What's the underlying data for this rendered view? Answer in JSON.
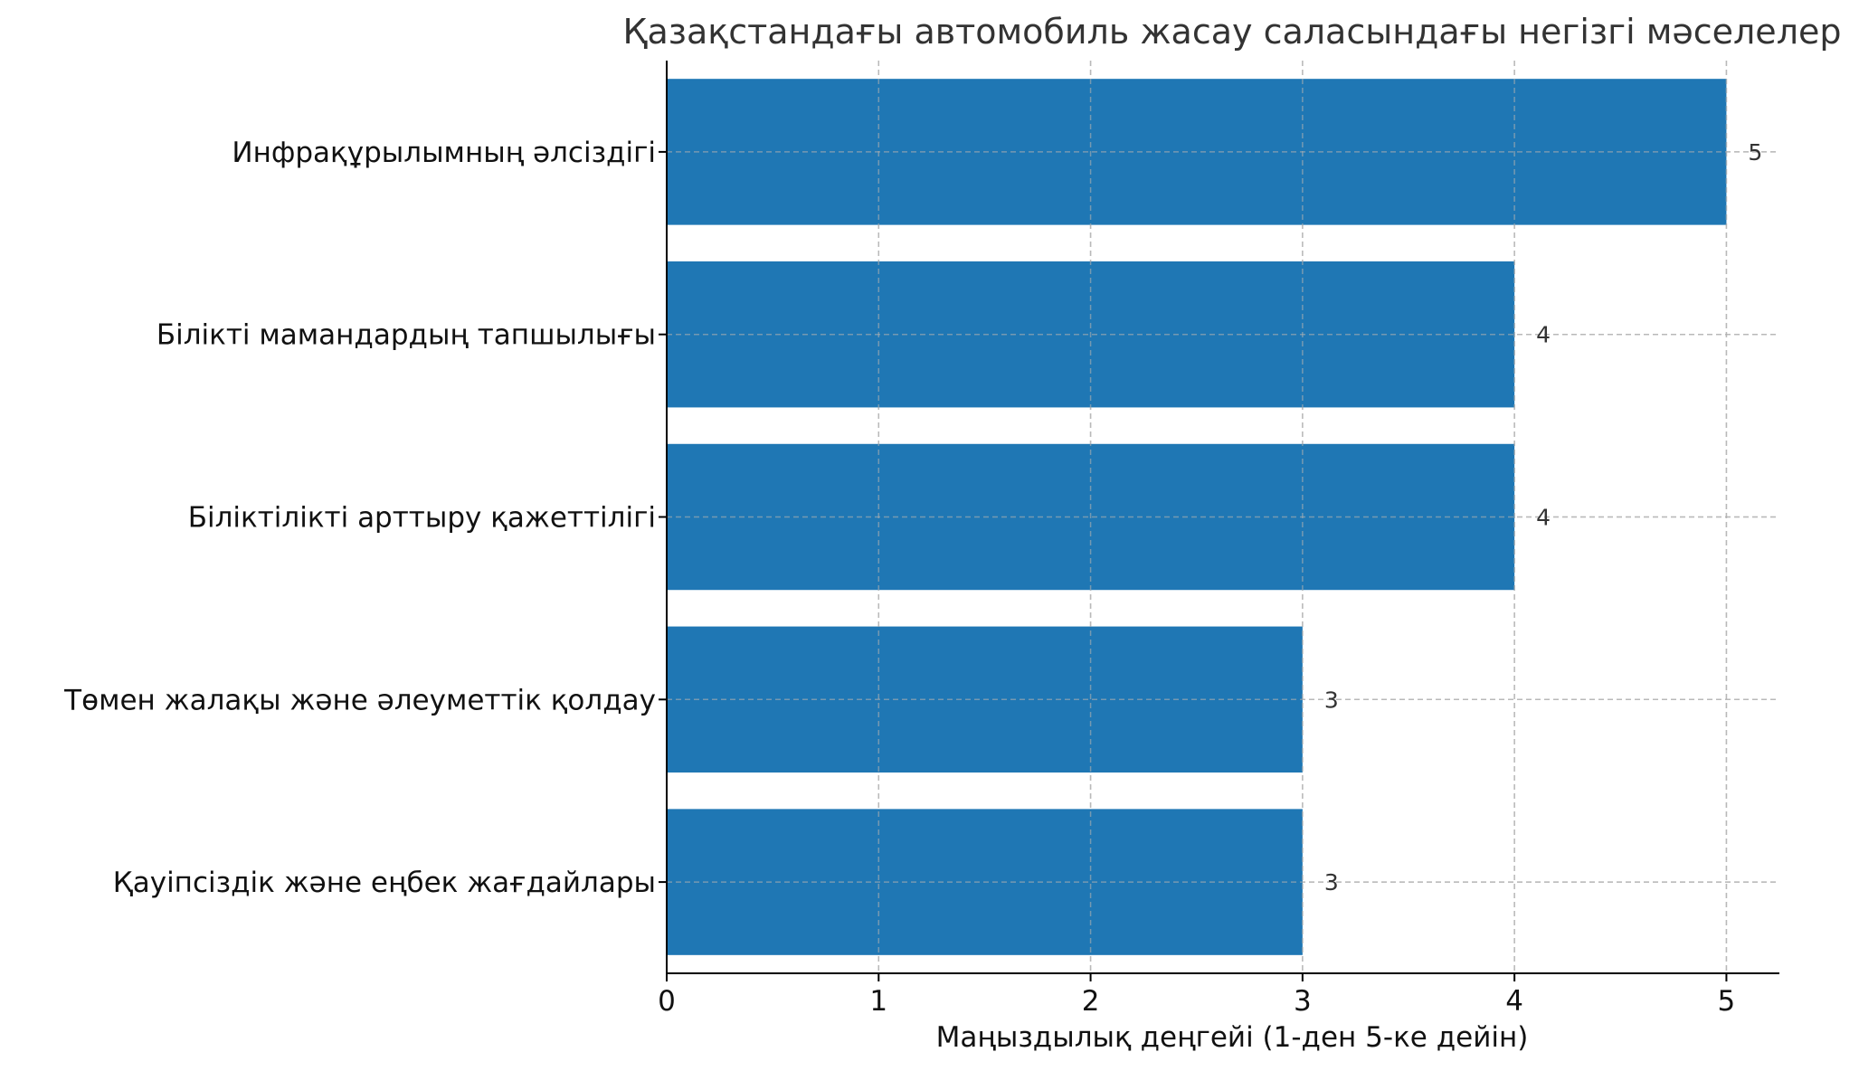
{
  "chart_data": {
    "type": "bar",
    "orientation": "horizontal",
    "title": "Қазақстандағы автомобиль жасау саласындағы негізгі мәселелер",
    "xlabel": "Маңыздылық деңгейі (1-ден 5-ке дейін)",
    "ylabel": "",
    "categories": [
      "Инфрақұрылымның әлсіздігі",
      "Білікті мамандардың тапшылығы",
      "Біліктілікті арттыру қажеттілігі",
      "Төмен жалақы және әлеуметтік қолдау",
      "Қауіпсіздік және еңбек жағдайлары"
    ],
    "values": [
      5,
      4,
      4,
      3,
      3
    ],
    "data_labels": [
      "5",
      "4",
      "4",
      "3",
      "3"
    ],
    "xlim": [
      0,
      5.25
    ],
    "xticks": [
      0,
      1,
      2,
      3,
      4,
      5
    ],
    "xtick_labels": [
      "0",
      "1",
      "2",
      "3",
      "4",
      "5"
    ],
    "grid": true,
    "bar_color": "#1f77b4",
    "grid_color": "#b0b0b0",
    "text_color": "#333333"
  }
}
